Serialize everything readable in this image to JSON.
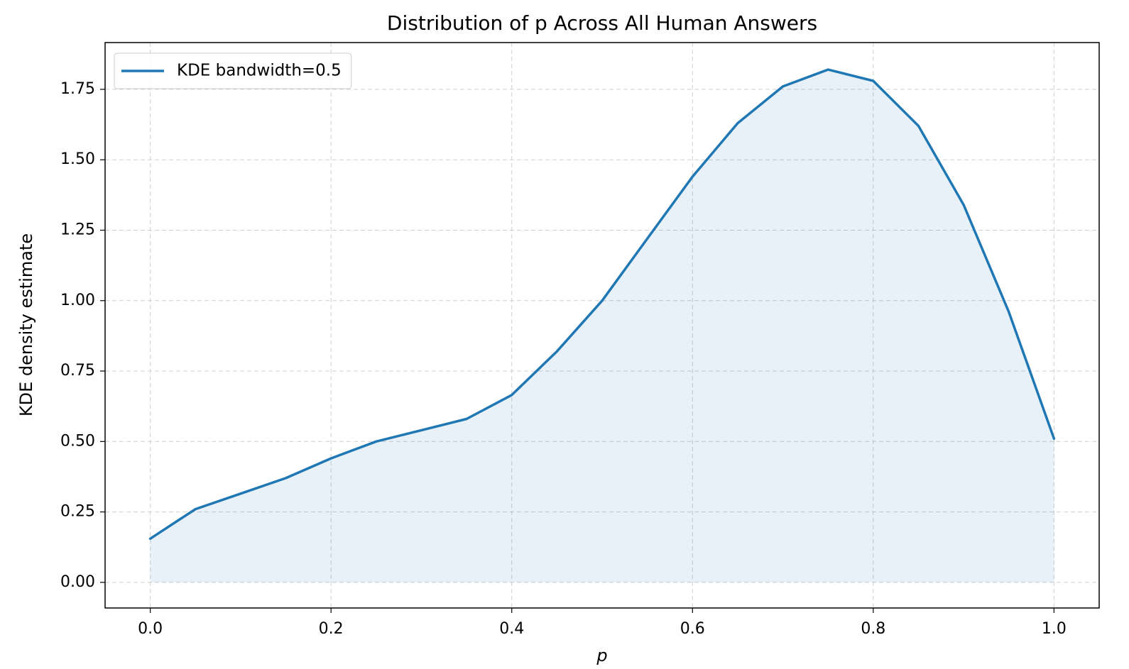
{
  "chart_data": {
    "type": "line",
    "title": "Distribution of p Across All Human Answers",
    "x_label": "p",
    "y_label": "KDE density estimate",
    "x": [
      0.0,
      0.05,
      0.1,
      0.15,
      0.2,
      0.25,
      0.3,
      0.35,
      0.4,
      0.45,
      0.5,
      0.55,
      0.6,
      0.65,
      0.7,
      0.75,
      0.8,
      0.85,
      0.9,
      0.95,
      1.0
    ],
    "series": [
      {
        "name": "KDE bandwidth=0.5",
        "color": "#1f77b4",
        "values": [
          0.155,
          0.26,
          0.315,
          0.37,
          0.44,
          0.5,
          0.54,
          0.58,
          0.665,
          0.82,
          1.0,
          1.22,
          1.44,
          1.63,
          1.76,
          1.82,
          1.78,
          1.62,
          1.34,
          0.96,
          0.51
        ]
      }
    ],
    "xlim": [
      -0.05,
      1.05
    ],
    "ylim": [
      -0.091,
      1.916
    ],
    "xticks": [
      {
        "value": 0,
        "label": "0.0"
      },
      0.2,
      0.4,
      0.6,
      0.8,
      {
        "value": 1,
        "label": "1.0"
      }
    ],
    "yticks": [
      {
        "value": 0,
        "label": "0.00"
      },
      0.25,
      {
        "value": 0.5,
        "label": "0.50"
      },
      0.75,
      {
        "value": 1,
        "label": "1.00"
      },
      1.25,
      {
        "value": 1.5,
        "label": "1.50"
      },
      1.75
    ],
    "grid": true,
    "legend": "upper left",
    "fill": true
  }
}
